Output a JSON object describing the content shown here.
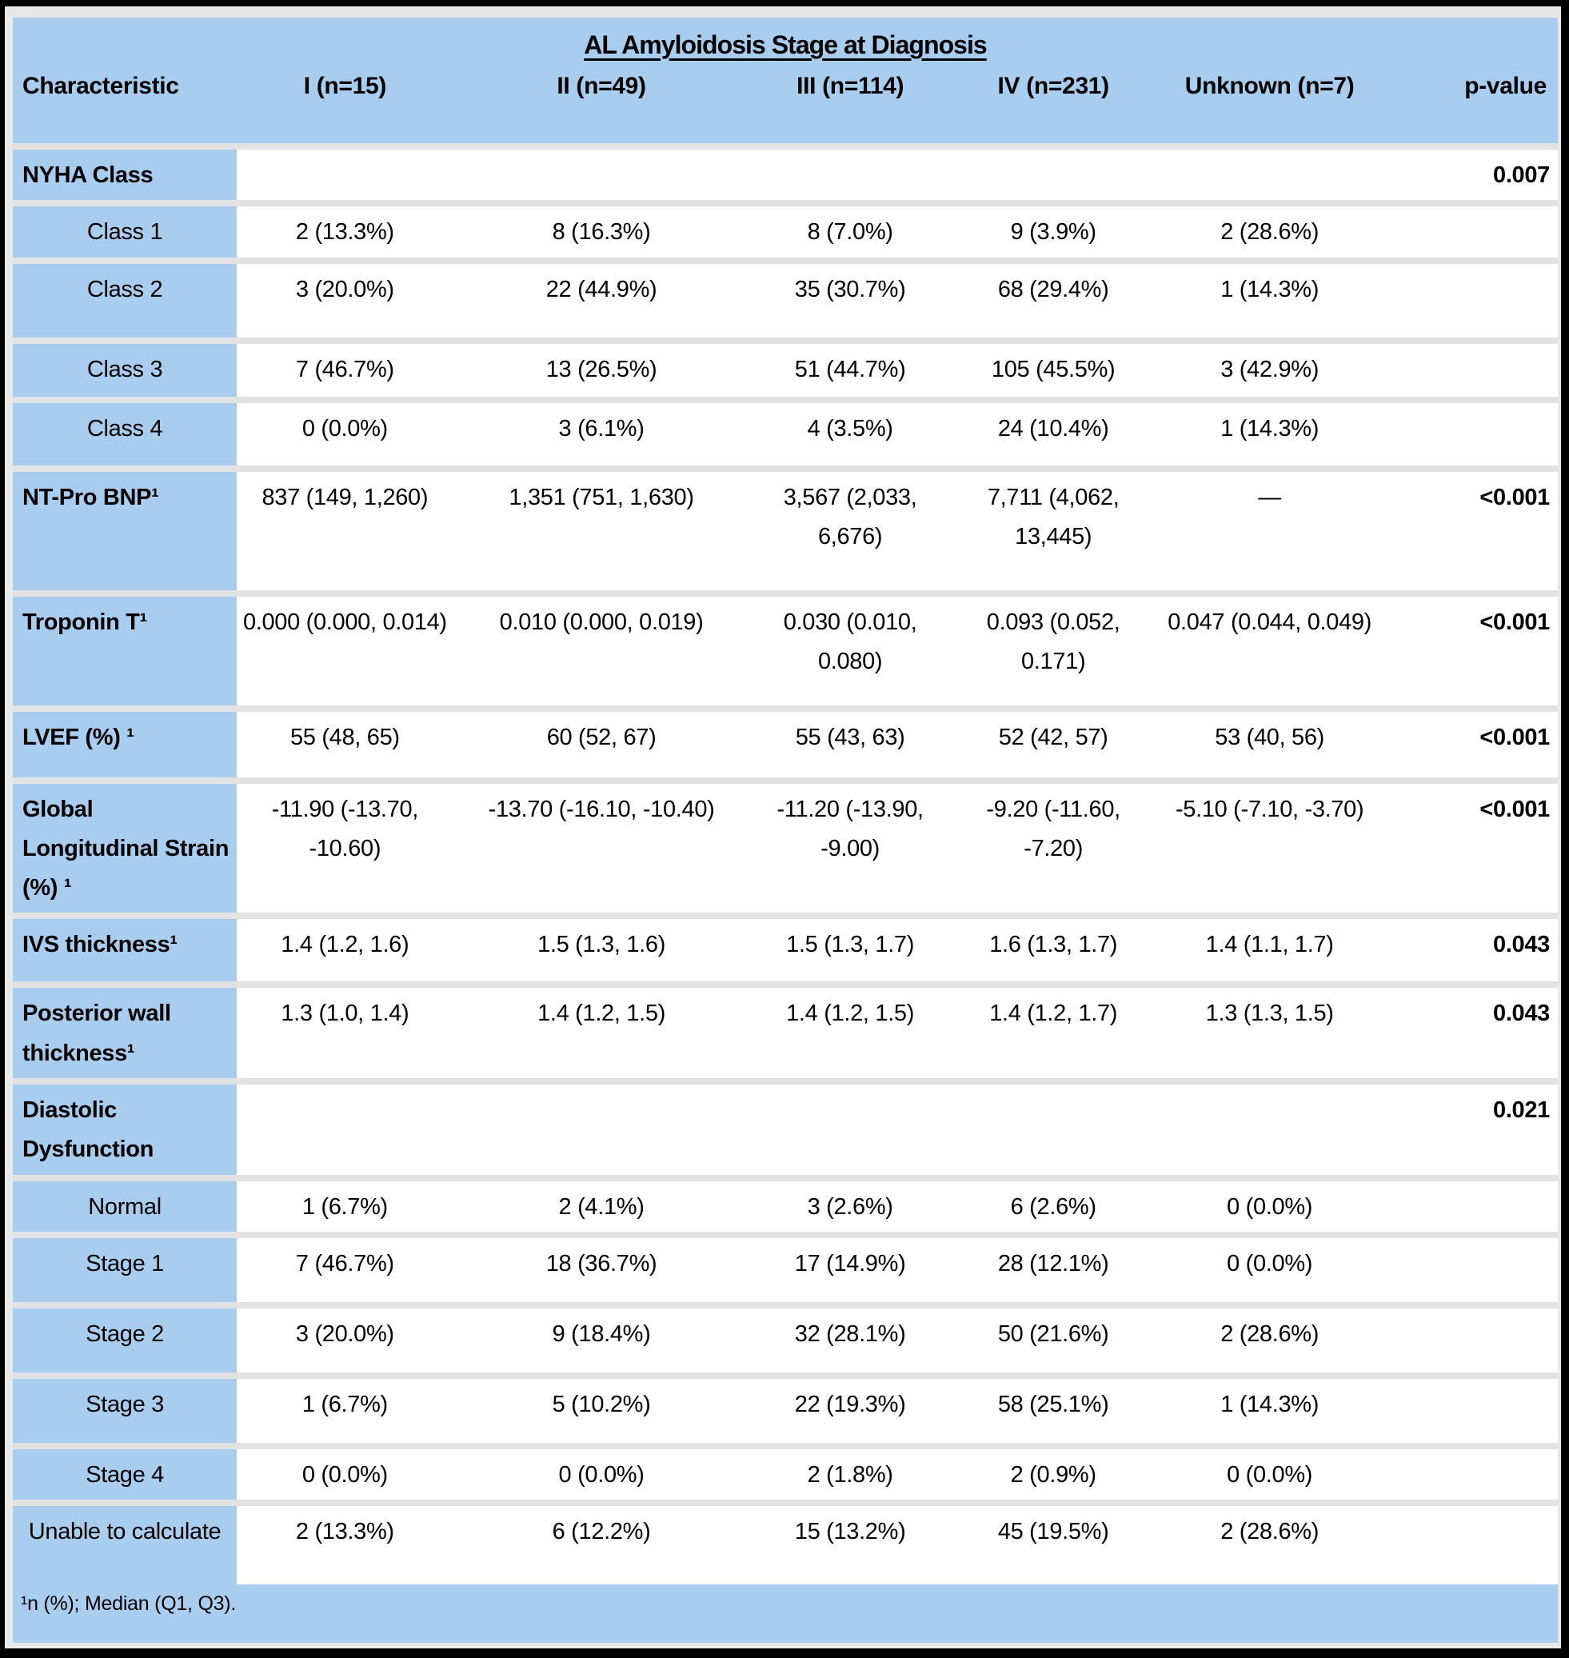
{
  "table": {
    "title": "AL Amyloidosis Stage at Diagnosis",
    "columns": [
      "Characteristic",
      "I (n=15)",
      "II (n=49)",
      "III (n=114)",
      "IV (n=231)",
      "Unknown (n=7)",
      "p-value"
    ],
    "rows": [
      {
        "type": "section",
        "label": "NYHA Class",
        "cells": [
          "",
          "",
          "",
          "",
          ""
        ],
        "p": "0.007"
      },
      {
        "type": "sub",
        "label": "Class 1",
        "cells": [
          "2 (13.3%)",
          "8 (16.3%)",
          "8 (7.0%)",
          "9 (3.9%)",
          "2 (28.6%)"
        ],
        "p": ""
      },
      {
        "type": "sub",
        "label": "Class 2",
        "cells": [
          "3 (20.0%)",
          "22 (44.9%)",
          "35 (30.7%)",
          "68 (29.4%)",
          "1 (14.3%)"
        ],
        "p": ""
      },
      {
        "type": "sub",
        "label": "Class 3",
        "cells": [
          "7 (46.7%)",
          "13 (26.5%)",
          "51 (44.7%)",
          "105 (45.5%)",
          "3 (42.9%)"
        ],
        "p": ""
      },
      {
        "type": "sub",
        "label": "Class 4",
        "cells": [
          "0 (0.0%)",
          "3 (6.1%)",
          "4 (3.5%)",
          "24 (10.4%)",
          "1 (14.3%)"
        ],
        "p": ""
      },
      {
        "type": "section",
        "label": "NT-Pro BNP¹",
        "cells": [
          "837 (149, 1,260)",
          "1,351 (751, 1,630)",
          "3,567 (2,033, 6,676)",
          "7,711 (4,062, 13,445)",
          "—"
        ],
        "p": "<0.001"
      },
      {
        "type": "section",
        "label": "Troponin T¹",
        "cells": [
          "0.000 (0.000, 0.014)",
          "0.010 (0.000, 0.019)",
          "0.030 (0.010, 0.080)",
          "0.093 (0.052, 0.171)",
          "0.047 (0.044, 0.049)"
        ],
        "p": "<0.001"
      },
      {
        "type": "section",
        "label": "LVEF (%) ¹",
        "cells": [
          "55 (48, 65)",
          "60 (52, 67)",
          "55 (43, 63)",
          "52 (42, 57)",
          "53 (40, 56)"
        ],
        "p": "<0.001"
      },
      {
        "type": "section",
        "label": "Global Longitudinal Strain (%) ¹",
        "cells": [
          "-11.90 (-13.70, -10.60)",
          "-13.70 (-16.10, -10.40)",
          "-11.20 (-13.90, -9.00)",
          "-9.20 (-11.60, -7.20)",
          "-5.10 (-7.10, -3.70)"
        ],
        "p": "<0.001"
      },
      {
        "type": "section",
        "label": "IVS thickness¹",
        "cells": [
          "1.4 (1.2, 1.6)",
          "1.5 (1.3, 1.6)",
          "1.5 (1.3, 1.7)",
          "1.6 (1.3, 1.7)",
          "1.4 (1.1, 1.7)"
        ],
        "p": "0.043"
      },
      {
        "type": "section",
        "label": "Posterior wall thickness¹",
        "cells": [
          "1.3 (1.0, 1.4)",
          "1.4 (1.2, 1.5)",
          "1.4 (1.2, 1.5)",
          "1.4 (1.2, 1.7)",
          "1.3 (1.3, 1.5)"
        ],
        "p": "0.043"
      },
      {
        "type": "section",
        "label": "Diastolic Dysfunction",
        "cells": [
          "",
          "",
          "",
          "",
          ""
        ],
        "p": "0.021"
      },
      {
        "type": "sub",
        "label": "Normal",
        "cells": [
          "1 (6.7%)",
          "2 (4.1%)",
          "3 (2.6%)",
          "6 (2.6%)",
          "0 (0.0%)"
        ],
        "p": ""
      },
      {
        "type": "sub",
        "label": "Stage 1",
        "cells": [
          "7 (46.7%)",
          "18 (36.7%)",
          "17 (14.9%)",
          "28 (12.1%)",
          "0 (0.0%)"
        ],
        "p": ""
      },
      {
        "type": "sub",
        "label": "Stage 2",
        "cells": [
          "3 (20.0%)",
          "9 (18.4%)",
          "32 (28.1%)",
          "50 (21.6%)",
          "2 (28.6%)"
        ],
        "p": ""
      },
      {
        "type": "sub",
        "label": "Stage 3",
        "cells": [
          "1 (6.7%)",
          "5 (10.2%)",
          "22 (19.3%)",
          "58 (25.1%)",
          "1 (14.3%)"
        ],
        "p": ""
      },
      {
        "type": "sub",
        "label": "Stage 4",
        "cells": [
          "0 (0.0%)",
          "0 (0.0%)",
          "2 (1.8%)",
          "2 (0.9%)",
          "0 (0.0%)"
        ],
        "p": ""
      },
      {
        "type": "sub",
        "label": "Unable to calculate",
        "cells": [
          "2 (13.3%)",
          "6 (12.2%)",
          "15 (13.2%)",
          "45 (19.5%)",
          "2 (28.6%)"
        ],
        "p": ""
      }
    ],
    "footnote": "¹n (%); Median (Q1, Q3)."
  }
}
